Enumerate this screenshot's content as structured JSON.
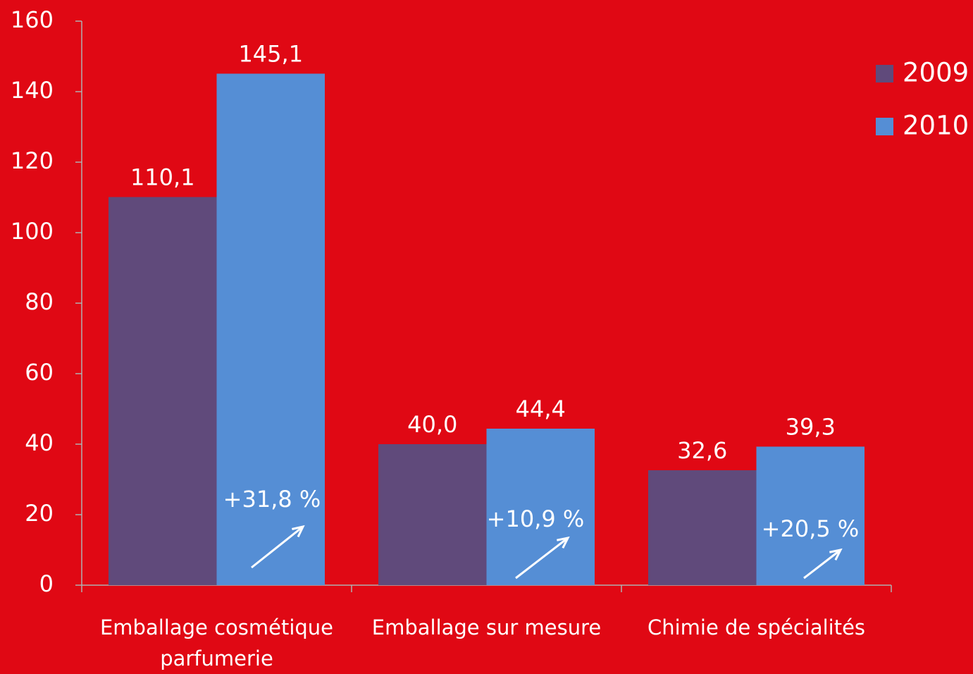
{
  "chart_data": {
    "type": "bar",
    "categories": [
      "Emballage cosmétique parfumerie",
      "Emballage sur mesure",
      "Chimie de spécialités"
    ],
    "series": [
      {
        "name": "2009",
        "color": "#604a7b",
        "values": [
          110.1,
          40.0,
          32.6
        ],
        "value_labels": [
          "110,1",
          "40,0",
          "32,6"
        ]
      },
      {
        "name": "2010",
        "color": "#558ed5",
        "values": [
          145.1,
          44.4,
          39.3
        ],
        "value_labels": [
          "145,1",
          "44,4",
          "39,3"
        ]
      }
    ],
    "annotations": [
      "+31,8 %",
      "+10,9 %",
      "+20,5 %"
    ],
    "ylim": [
      0,
      160
    ],
    "yticks": [
      0,
      20,
      40,
      60,
      80,
      100,
      120,
      140,
      160
    ],
    "legend": "right"
  }
}
